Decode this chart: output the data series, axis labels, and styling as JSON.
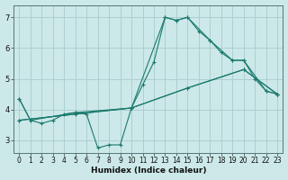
{
  "xlabel": "Humidex (Indice chaleur)",
  "xlim": [
    -0.5,
    23.5
  ],
  "ylim": [
    2.6,
    7.4
  ],
  "yticks": [
    3,
    4,
    5,
    6,
    7
  ],
  "xticks": [
    0,
    1,
    2,
    3,
    4,
    5,
    6,
    7,
    8,
    9,
    10,
    11,
    12,
    13,
    14,
    15,
    16,
    17,
    18,
    19,
    20,
    21,
    22,
    23
  ],
  "bg_color": "#cce8e8",
  "grid_color": "#aacccc",
  "line_color": "#1a7a6e",
  "lines": [
    {
      "x": [
        0,
        1,
        2,
        3,
        4,
        5,
        6,
        7,
        8,
        9,
        10,
        11,
        12,
        13,
        14,
        15,
        16,
        17,
        18,
        19,
        20,
        21,
        22,
        23
      ],
      "y": [
        4.35,
        3.65,
        3.55,
        3.65,
        3.85,
        3.9,
        3.85,
        2.75,
        2.85,
        2.85,
        4.05,
        4.8,
        5.55,
        7.0,
        6.9,
        7.0,
        6.55,
        6.25,
        5.85,
        5.6,
        5.6,
        5.0,
        4.6,
        4.5
      ]
    },
    {
      "x": [
        0,
        1,
        5,
        10,
        13,
        14,
        15,
        17,
        19,
        20,
        22,
        23
      ],
      "y": [
        4.35,
        3.65,
        3.9,
        4.05,
        7.0,
        6.9,
        7.0,
        6.25,
        5.6,
        5.6,
        4.6,
        4.5
      ]
    },
    {
      "x": [
        0,
        5,
        10,
        15,
        20,
        23
      ],
      "y": [
        3.65,
        3.85,
        4.05,
        4.7,
        5.3,
        4.5
      ]
    },
    {
      "x": [
        0,
        10,
        15,
        20,
        23
      ],
      "y": [
        3.65,
        4.05,
        4.7,
        5.3,
        4.5
      ]
    }
  ]
}
